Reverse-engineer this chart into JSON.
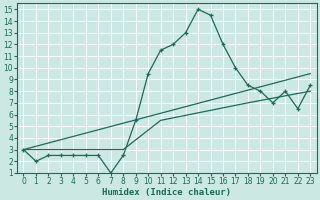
{
  "xlabel": "Humidex (Indice chaleur)",
  "xlim": [
    -0.5,
    23.5
  ],
  "ylim": [
    1,
    15.5
  ],
  "xticks": [
    0,
    1,
    2,
    3,
    4,
    5,
    6,
    7,
    8,
    9,
    10,
    11,
    12,
    13,
    14,
    15,
    16,
    17,
    18,
    19,
    20,
    21,
    22,
    23
  ],
  "yticks": [
    1,
    2,
    3,
    4,
    5,
    6,
    7,
    8,
    9,
    10,
    11,
    12,
    13,
    14,
    15
  ],
  "bg_color": "#cbe8e3",
  "line_color": "#1a6b5a",
  "grid_color": "#ffffff",
  "zigzag_x": [
    0,
    1,
    2,
    3,
    4,
    5,
    6,
    7,
    8,
    9,
    10,
    11,
    12,
    13,
    14,
    15,
    16,
    17,
    18,
    19,
    20,
    21,
    22,
    23
  ],
  "zigzag_y": [
    3,
    2,
    2.5,
    2.5,
    2.5,
    2.5,
    2.5,
    1,
    2.5,
    5.5,
    9.5,
    11.5,
    12,
    13,
    15,
    14.5,
    12,
    10,
    8.5,
    8,
    7,
    8,
    6.5,
    8.5
  ],
  "line1_x": [
    0,
    23
  ],
  "line1_y": [
    3,
    9.5
  ],
  "line2_x": [
    0,
    8,
    11,
    18,
    23
  ],
  "line2_y": [
    3,
    3,
    5.5,
    7,
    8
  ],
  "tick_fontsize": 5.5,
  "label_fontsize": 6.5
}
